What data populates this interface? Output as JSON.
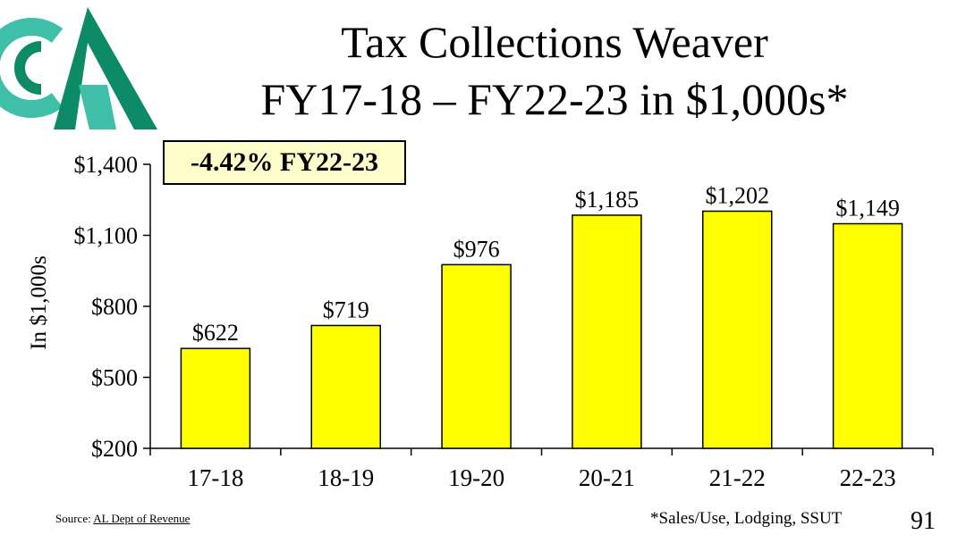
{
  "slide": {
    "title_line1": "Tax Collections Weaver",
    "title_line2": "FY17-18 – FY22-23 in $1,000s*",
    "callout": "-4.42% FY22-23",
    "source_prefix": "Source: ",
    "source_link": "AL Dept of Revenue",
    "footnote": "*Sales/Use, Lodging, SSUT",
    "page_number": "91",
    "logo_icon": "organization-logo-icon"
  },
  "colors": {
    "bar_fill": "#ffff00",
    "bar_stroke": "#000000",
    "callout_fill": "#ffffcc",
    "logo_teal": "#3fbfa7",
    "logo_green": "#0d8a66"
  },
  "chart_data": {
    "type": "bar",
    "categories": [
      "17-18",
      "18-19",
      "19-20",
      "20-21",
      "21-22",
      "22-23"
    ],
    "values": [
      622,
      719,
      976,
      1185,
      1202,
      1149
    ],
    "data_labels": [
      "$622",
      "$719",
      "$976",
      "$1,185",
      "$1,202",
      "$1,149"
    ],
    "ylabel": "In $1,000s",
    "ylim": [
      200,
      1400
    ],
    "yticks": [
      200,
      500,
      800,
      1100,
      1400
    ],
    "ytick_labels": [
      "$200",
      "$500",
      "$800",
      "$1,100",
      "$1,400"
    ],
    "grid": false,
    "legend": "none"
  }
}
